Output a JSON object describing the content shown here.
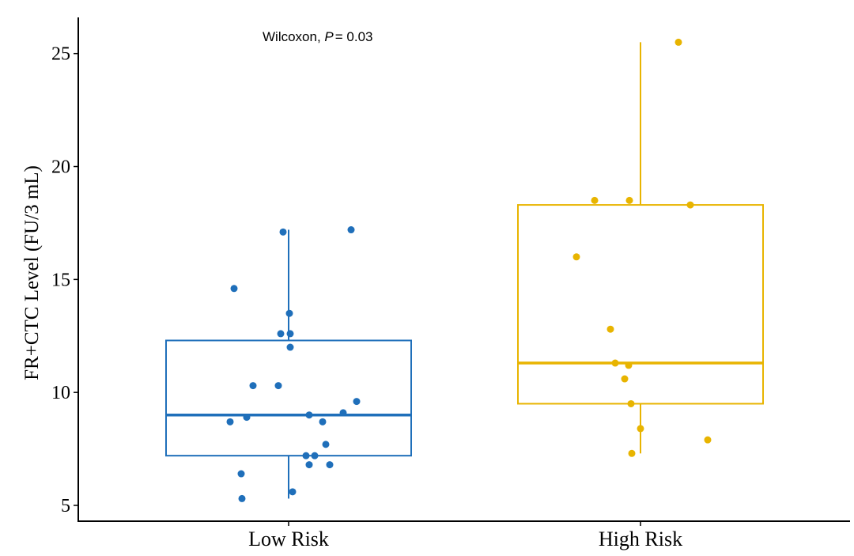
{
  "chart_data": {
    "type": "box",
    "annotation": {
      "prefix": "Wilcoxon, ",
      "symbol": "P",
      "suffix": "= 0.03"
    },
    "y_label": "FR+CTC Level (FU/3 mL)",
    "categories": [
      "Low Risk",
      "High Risk"
    ],
    "boxes": [
      {
        "min": 5.3,
        "q1": 7.2,
        "median": 9.0,
        "q3": 12.3,
        "max": 17.2,
        "color": "#1f6fba"
      },
      {
        "min": 7.3,
        "q1": 9.5,
        "median": 11.3,
        "q3": 18.3,
        "max": 25.5,
        "color": "#e8b400"
      }
    ],
    "points": [
      [
        14.6,
        17.1,
        17.2,
        13.5,
        12.6,
        12.6,
        12.0,
        10.3,
        10.3,
        9.6,
        9.1,
        9.0,
        8.9,
        8.7,
        8.7,
        7.7,
        7.2,
        7.2,
        6.8,
        6.8,
        6.4,
        5.6,
        5.3
      ],
      [
        25.5,
        18.5,
        18.5,
        18.3,
        16.0,
        12.8,
        11.3,
        11.2,
        10.6,
        9.5,
        8.4,
        7.9,
        7.3
      ]
    ],
    "ylim": [
      4.3,
      26.6
    ],
    "yticks": [
      5,
      10,
      15,
      20,
      25
    ],
    "grid": false
  }
}
